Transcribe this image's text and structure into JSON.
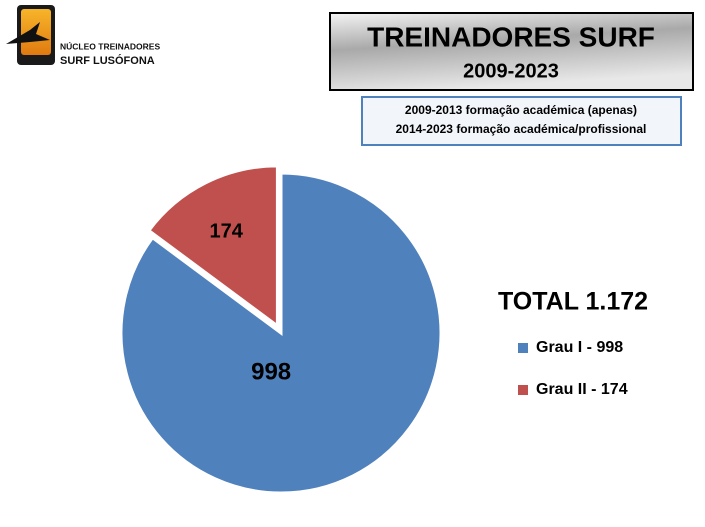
{
  "logo": {
    "line1": "NÚCLEO TREINADORES",
    "line2": "SURF LUSÓFONA"
  },
  "chart_data": {
    "type": "pie",
    "title": "TREINADORES SURF",
    "subtitle": "2009-2023",
    "annotations": [
      "2009-2013 formação académica (apenas)",
      "2014-2023 formação académica/profissional"
    ],
    "total": "TOTAL 1.172",
    "categories": [
      "Grau I - 998",
      "Grau II - 174"
    ],
    "values": [
      998,
      174
    ],
    "colors": [
      "#4f81bd",
      "#c0504d"
    ],
    "legend": "right"
  }
}
